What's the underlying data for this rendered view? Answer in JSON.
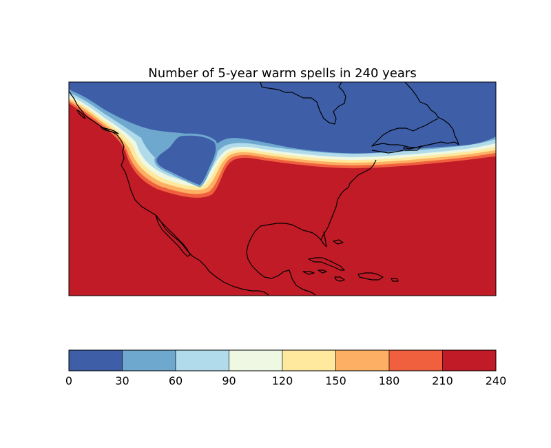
{
  "map": {
    "title": "Number of 5-year warm spells in 240 years",
    "projection": "cylindrical",
    "region": "North America, Central America and Caribbean",
    "field_colors": {
      "high": "#c01b26",
      "low": "#3e5ea8"
    }
  },
  "colorbar": {
    "colors": [
      "#3e5ea8",
      "#6ea8cf",
      "#b1dbeb",
      "#eef8e2",
      "#fee99e",
      "#fdb063",
      "#f0603f",
      "#c01b26"
    ],
    "ticks": [
      "0",
      "30",
      "60",
      "90",
      "120",
      "150",
      "180",
      "210",
      "240"
    ]
  }
}
